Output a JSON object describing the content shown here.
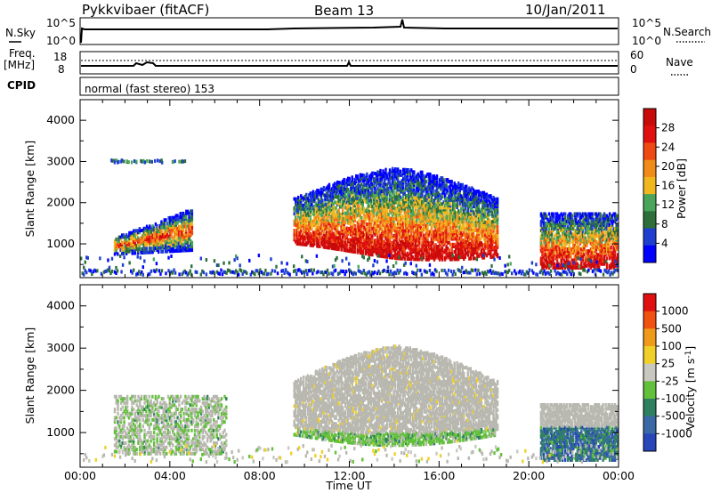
{
  "header": {
    "station": "Pykkvibaer (fitACF)",
    "beam": "Beam 13",
    "date": "10/Jan/2011"
  },
  "strips": {
    "nsky_label": "N.Sky",
    "nsky_ticks": [
      "10^5",
      "10^0"
    ],
    "nsearch_label": "N.Search",
    "nsearch_ticks": [
      "10^5",
      "10^0"
    ],
    "freq_label": "Freq.",
    "freq_unit": "[MHz]",
    "freq_ticks": [
      "18",
      "8"
    ],
    "nave_label": "Nave",
    "nave_ticks": [
      "60",
      "0"
    ],
    "cpid_label": "CPID",
    "cpid_text": "normal (fast stereo) 153"
  },
  "colors": {
    "power_scale": [
      "#0000ff",
      "#1e3fd0",
      "#2d6e3a",
      "#4aa55a",
      "#f0b81e",
      "#f08a19",
      "#f04a14",
      "#e01010",
      "#c80a0a"
    ],
    "velocity_scale": [
      "#2845b9",
      "#3a69a6",
      "#2e8060",
      "#63c03a",
      "#c8c8c0",
      "#f0d028",
      "#f09a1c",
      "#f05010",
      "#e01010"
    ],
    "ground_scatter": "#b8b8b0"
  },
  "chart_data": [
    {
      "type": "heatmap",
      "panel": "power",
      "ylabel": "Slant Range [km]",
      "yticks": [
        "4000",
        "3000",
        "2000",
        "1000"
      ],
      "ylim": [
        180,
        4500
      ],
      "xlim": [
        0,
        24
      ],
      "colorbar_label": "Power [dB]",
      "colorbar_ticks": [
        "28",
        "24",
        "20",
        "16",
        "12",
        "8",
        "4"
      ],
      "colorbar_range": [
        0,
        30
      ],
      "regions": [
        {
          "t": [
            1.5,
            5.0
          ],
          "r": [
            700,
            1950
          ],
          "level": "moderate-high"
        },
        {
          "t": [
            9.5,
            18.5
          ],
          "r": [
            600,
            2800
          ],
          "level": "high"
        },
        {
          "t": [
            20.5,
            24.0
          ],
          "r": [
            400,
            1750
          ],
          "level": "high"
        }
      ]
    },
    {
      "type": "heatmap",
      "panel": "velocity",
      "ylabel": "Slant Range [km]",
      "yticks": [
        "4000",
        "3000",
        "2000",
        "1000"
      ],
      "ylim": [
        180,
        4500
      ],
      "xlim": [
        0,
        24
      ],
      "xlabel": "Time UT",
      "xticks": [
        "00:00",
        "04:00",
        "08:00",
        "12:00",
        "16:00",
        "20:00",
        "00:00"
      ],
      "colorbar_label": "Velocity [m s",
      "colorbar_unit_exp": "-1",
      "colorbar_ticks": [
        "1000",
        "500",
        "100",
        "25",
        "-25",
        "-100",
        "-500",
        "-1000"
      ],
      "regions": [
        {
          "t": [
            9.5,
            18.5
          ],
          "r": [
            600,
            3100
          ],
          "class": "ground scatter"
        },
        {
          "t": [
            20.5,
            24.0
          ],
          "r": [
            300,
            1200
          ],
          "class": "toward"
        }
      ]
    }
  ]
}
